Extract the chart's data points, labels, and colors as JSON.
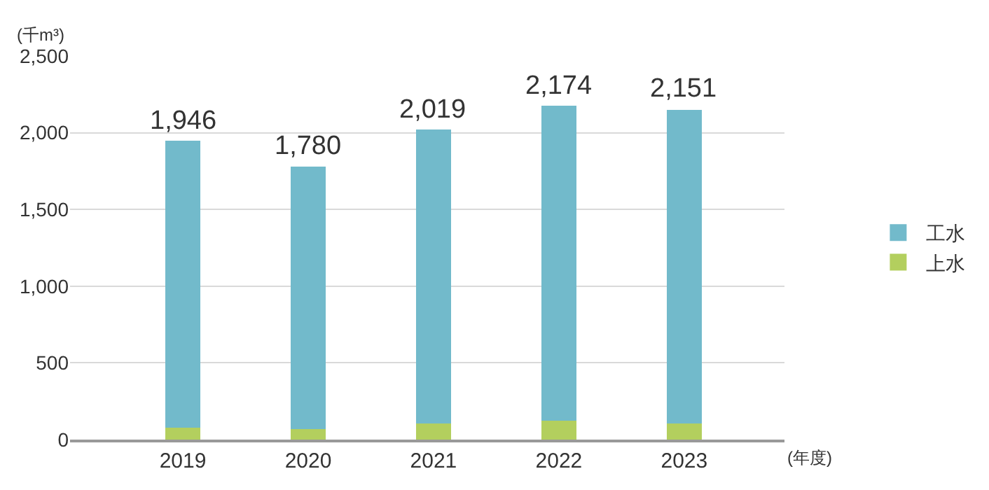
{
  "chart_data": {
    "type": "bar",
    "stacked": true,
    "ylabel": "(千m³)",
    "xlabel": "(年度)",
    "categories": [
      "2019",
      "2020",
      "2021",
      "2022",
      "2023"
    ],
    "series": [
      {
        "name": "上水",
        "color": "#b3cf5e",
        "values": [
          78,
          67,
          104,
          122,
          107
        ]
      },
      {
        "name": "工水",
        "color": "#72bacb",
        "values": [
          1868,
          1713,
          1915,
          2052,
          2044
        ]
      }
    ],
    "totals": [
      "1,946",
      "1,780",
      "2,019",
      "2,174",
      "2,151"
    ],
    "ylim": [
      0,
      2500
    ],
    "yticks": [
      {
        "value": 0,
        "label": "0"
      },
      {
        "value": 500,
        "label": "500"
      },
      {
        "value": 1000,
        "label": "1,000"
      },
      {
        "value": 1500,
        "label": "1,500"
      },
      {
        "value": 2000,
        "label": "2,000"
      },
      {
        "value": 2500,
        "label": "2,500"
      }
    ],
    "grid": "y",
    "legend": "right"
  }
}
